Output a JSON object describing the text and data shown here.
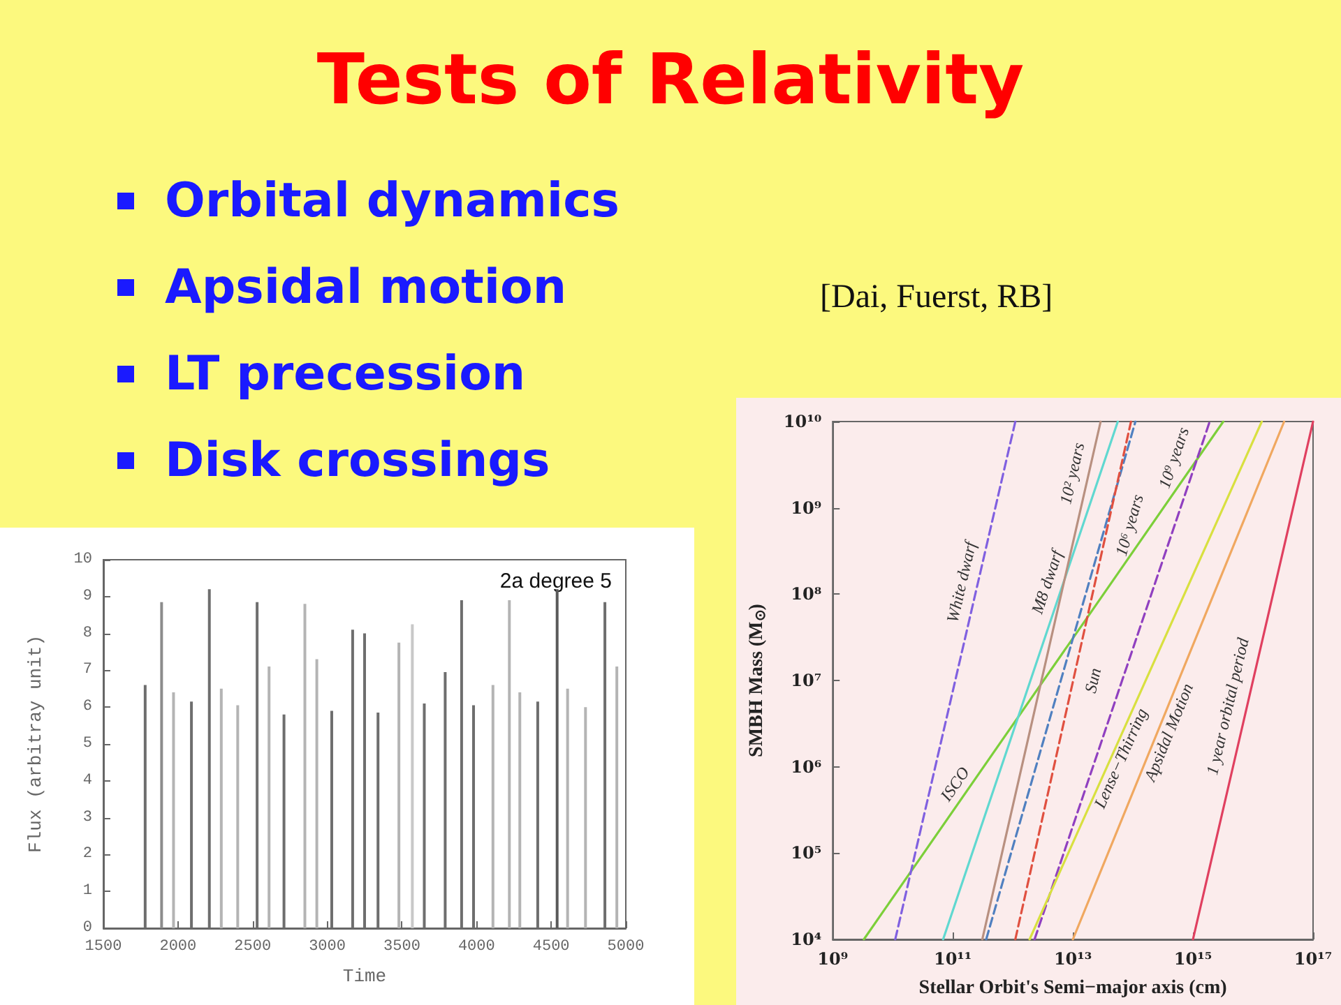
{
  "chart_data": [
    {
      "type": "other",
      "title": "Tests of Relativity",
      "annotations": [
        "Orbital dynamics",
        "Apsidal motion",
        "LT precession",
        "Disk crossings"
      ]
    },
    {
      "type": "bar",
      "xlabel": "Time",
      "ylabel": "Flux (arbitray unit)",
      "xlim": [
        1500,
        5000
      ],
      "ylim": [
        0,
        10
      ],
      "xticks": [
        1500,
        2000,
        2500,
        3000,
        3500,
        4000,
        4500,
        5000
      ],
      "yticks": [
        0,
        1,
        2,
        3,
        4,
        5,
        6,
        7,
        8,
        9,
        10
      ],
      "grid": false,
      "annotations": [
        "2a degree 5"
      ],
      "x": [
        1780,
        1890,
        1970,
        2090,
        2210,
        2290,
        2400,
        2530,
        2610,
        2710,
        2850,
        2930,
        3030,
        3170,
        3250,
        3340,
        3480,
        3570,
        3650,
        3790,
        3900,
        3980,
        4110,
        4220,
        4290,
        4410,
        4540,
        4610,
        4730,
        4860,
        4940
      ],
      "values": [
        6.6,
        8.85,
        6.4,
        6.15,
        9.2,
        6.5,
        6.05,
        8.85,
        7.1,
        5.8,
        8.8,
        7.3,
        5.9,
        8.1,
        8.0,
        5.85,
        7.75,
        8.25,
        6.1,
        6.95,
        8.9,
        6.05,
        6.6,
        8.9,
        6.4,
        6.15,
        9.2,
        6.5,
        6.0,
        8.85,
        7.1
      ],
      "colors": [
        "#6e6e6e",
        "#8c8c8c",
        "#b4b4b4",
        "#6e6e6e",
        "#6e6e6e",
        "#b4b4b4",
        "#b4b4b4",
        "#6e6e6e",
        "#b4b4b4",
        "#6e6e6e",
        "#b4b4b4",
        "#b4b4b4",
        "#6e6e6e",
        "#6e6e6e",
        "#6e6e6e",
        "#6e6e6e",
        "#b4b4b4",
        "#c8c8c8",
        "#6e6e6e",
        "#6e6e6e",
        "#6e6e6e",
        "#6e6e6e",
        "#b4b4b4",
        "#b4b4b4",
        "#b4b4b4",
        "#6e6e6e",
        "#5a5a5a",
        "#b4b4b4",
        "#b4b4b4",
        "#6e6e6e",
        "#b4b4b4"
      ]
    },
    {
      "type": "line",
      "xlabel": "Stellar Orbit's Semi−major axis (cm)",
      "ylabel": "SMBH Mass (M$_{⊙}$)",
      "log": "xy",
      "xlim": [
        1000000000.0,
        1e+17
      ],
      "ylim": [
        10000.0,
        10000000000.0
      ],
      "xticks": [
        {
          "value": 1000000000.0,
          "label": "10⁹"
        },
        {
          "value": 100000000000.0,
          "label": "10¹¹"
        },
        {
          "value": 10000000000000.0,
          "label": "10¹³"
        },
        {
          "value": 1000000000000000.0,
          "label": "10¹⁵"
        },
        {
          "value": 1e+17,
          "label": "10¹⁷"
        }
      ],
      "yticks": [
        {
          "value": 10000.0,
          "label": "10⁴"
        },
        {
          "value": 100000.0,
          "label": "10⁵"
        },
        {
          "value": 1000000.0,
          "label": "10⁶"
        },
        {
          "value": 10000000.0,
          "label": "10⁷"
        },
        {
          "value": 100000000.0,
          "label": "10⁸"
        },
        {
          "value": 1000000000.0,
          "label": "10⁹"
        },
        {
          "value": 10000000000.0,
          "label": "10¹⁰"
        }
      ],
      "grid": false,
      "marker": "none",
      "series": [
        {
          "name": "ISCO",
          "x": [
            3300000000.0,
            3200000000000000.0
          ],
          "values": [
            10000.0,
            10000000000.0
          ],
          "color": "#7ccf3a"
        },
        {
          "name": "White dwarf",
          "x": [
            11000000000.0,
            1100000000000.0
          ],
          "values": [
            10000.0,
            10000000000.0
          ],
          "color": "#8060e0",
          "line_style": "dashed"
        },
        {
          "name": "M8 dwarf",
          "x": [
            69000000000.0,
            56000000000000.0
          ],
          "values": [
            10000.0,
            10000000000.0
          ],
          "color": "#60d8d0"
        },
        {
          "name": "10² years",
          "x": [
            310000000000.0,
            29000000000000.0
          ],
          "values": [
            10000.0,
            10000000000.0
          ],
          "color": "#b89080"
        },
        {
          "name": "10⁶ years",
          "x": [
            360000000000.0,
            110000000000000.0
          ],
          "values": [
            10000.0,
            10000000000.0
          ],
          "color": "#5080c0",
          "line_style": "dashed"
        },
        {
          "name": "Sun",
          "x": [
            1100000000000.0,
            93000000000000.0
          ],
          "values": [
            10000.0,
            10000000000.0
          ],
          "color": "#e05040",
          "line_style": "dashed"
        },
        {
          "name": "10⁹ years",
          "x": [
            2300000000000.0,
            1900000000000000.0
          ],
          "values": [
            10000.0,
            10000000000.0
          ],
          "color": "#9040c0",
          "line_style": "dashed"
        },
        {
          "name": "Lense−Thirring",
          "x": [
            1900000000000.0,
            1.4e+16
          ],
          "values": [
            10000.0,
            10000000000.0
          ],
          "color": "#d8e040"
        },
        {
          "name": "Apsidal Motion",
          "x": [
            10000000000000.0,
            3.3e+16
          ],
          "values": [
            10000.0,
            10000000000.0
          ],
          "color": "#f0a860"
        },
        {
          "name": "1 year orbital period",
          "x": [
            1000000000000000.0,
            1e+17
          ],
          "values": [
            10000.0,
            10000000000.0
          ],
          "color": "#e04060"
        }
      ],
      "annotations": [
        "[Dai, Fuerst, RB]"
      ]
    }
  ]
}
